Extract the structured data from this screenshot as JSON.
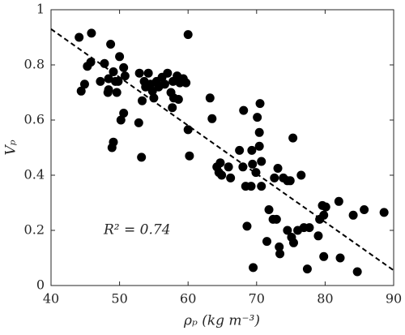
{
  "chart_data": {
    "type": "scatter",
    "xlabel": "ρₚ (kg m⁻³)",
    "ylabel": "Vₚ",
    "annotation": "R² = 0.74",
    "color": "#000000",
    "xlim": [
      40,
      90
    ],
    "ylim": [
      0,
      1
    ],
    "xticks": [
      40,
      50,
      60,
      70,
      80,
      90
    ],
    "yticks": [
      0,
      0.2,
      0.4,
      0.6,
      0.8,
      1
    ],
    "fit_line": {
      "x": [
        40,
        90
      ],
      "y": [
        0.93,
        0.055
      ]
    },
    "x": [
      44.1,
      45.9,
      44.4,
      44.9,
      45.3,
      45.8,
      47.2,
      47.8,
      48.7,
      48.4,
      48.4,
      48.3,
      49.1,
      49.4,
      49.8,
      50.0,
      50.6,
      50.8,
      49.6,
      50.6,
      50.2,
      49.1,
      48.9,
      52.8,
      53.2,
      52.9,
      53.3,
      53.6,
      53.8,
      54.2,
      54.5,
      54.8,
      55.0,
      55.4,
      55.7,
      56.2,
      56.6,
      57.0,
      57.5,
      57.8,
      58.4,
      58.8,
      59.3,
      59.7,
      57.9,
      57.7,
      58.6,
      60.0,
      60.0,
      60.2,
      63.2,
      63.5,
      64.2,
      64.5,
      64.7,
      64.9,
      65.9,
      66.2,
      67.5,
      68.1,
      68.0,
      68.4,
      68.6,
      69.2,
      69.3,
      69.4,
      69.9,
      70.1,
      70.4,
      70.4,
      70.5,
      69.5,
      70.7,
      70.7,
      71.8,
      72.4,
      72.9,
      72.6,
      73.1,
      73.9,
      74.5,
      75.3,
      74.9,
      76.5,
      71.5,
      73.3,
      73.4,
      74.5,
      75.1,
      75.4,
      76.0,
      76.9,
      77.7,
      77.4,
      79.0,
      79.2,
      79.6,
      79.8,
      80.1,
      79.8,
      82.0,
      82.2,
      84.1,
      84.7,
      85.7,
      88.6
    ],
    "values": [
      0.9,
      0.915,
      0.705,
      0.73,
      0.795,
      0.81,
      0.74,
      0.805,
      0.875,
      0.75,
      0.71,
      0.7,
      0.775,
      0.74,
      0.74,
      0.83,
      0.79,
      0.76,
      0.7,
      0.625,
      0.6,
      0.52,
      0.5,
      0.59,
      0.465,
      0.77,
      0.67,
      0.74,
      0.72,
      0.77,
      0.73,
      0.705,
      0.68,
      0.74,
      0.72,
      0.755,
      0.73,
      0.77,
      0.7,
      0.74,
      0.76,
      0.735,
      0.75,
      0.735,
      0.68,
      0.645,
      0.675,
      0.91,
      0.565,
      0.47,
      0.68,
      0.605,
      0.43,
      0.41,
      0.445,
      0.4,
      0.43,
      0.39,
      0.49,
      0.635,
      0.43,
      0.36,
      0.215,
      0.36,
      0.49,
      0.44,
      0.41,
      0.61,
      0.555,
      0.505,
      0.66,
      0.065,
      0.45,
      0.36,
      0.275,
      0.24,
      0.24,
      0.39,
      0.425,
      0.39,
      0.38,
      0.535,
      0.38,
      0.4,
      0.16,
      0.14,
      0.115,
      0.2,
      0.175,
      0.155,
      0.2,
      0.21,
      0.21,
      0.06,
      0.18,
      0.24,
      0.29,
      0.255,
      0.285,
      0.105,
      0.305,
      0.1,
      0.255,
      0.05,
      0.275,
      0.265
    ]
  }
}
